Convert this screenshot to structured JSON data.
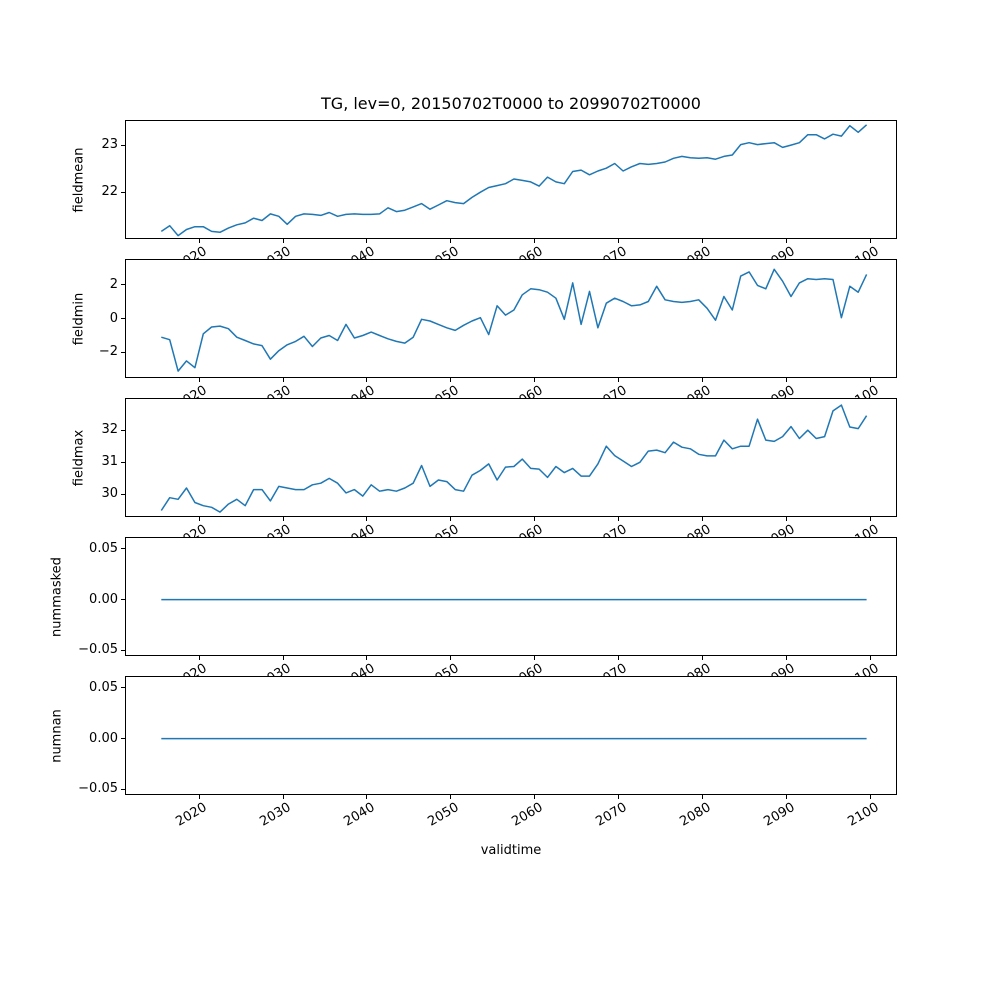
{
  "figure": {
    "title": "TG, lev=0, 20150702T0000 to 20990702T0000",
    "xlabel": "validtime",
    "background": "#ffffff",
    "line_color": "#1f77b4",
    "axis_color": "#000000"
  },
  "chart_data": {
    "type": "line",
    "title": "TG, lev=0, 20150702T0000 to 20990702T0000",
    "xlabel": "validtime",
    "grid": false,
    "legend": false,
    "line_color": "#1f77b4",
    "xlim": [
      2011.3,
      2103.0
    ],
    "x_plot_offset": 0.5,
    "xticks": [
      2020,
      2030,
      2040,
      2050,
      2060,
      2070,
      2080,
      2090,
      2100
    ],
    "xtick_labels": [
      "2020",
      "2030",
      "2040",
      "2050",
      "2060",
      "2070",
      "2080",
      "2090",
      "2100"
    ],
    "xtick_rotation_deg": 30,
    "x": [
      2015,
      2016,
      2017,
      2018,
      2019,
      2020,
      2021,
      2022,
      2023,
      2024,
      2025,
      2026,
      2027,
      2028,
      2029,
      2030,
      2031,
      2032,
      2033,
      2034,
      2035,
      2036,
      2037,
      2038,
      2039,
      2040,
      2041,
      2042,
      2043,
      2044,
      2045,
      2046,
      2047,
      2048,
      2049,
      2050,
      2051,
      2052,
      2053,
      2054,
      2055,
      2056,
      2057,
      2058,
      2059,
      2060,
      2061,
      2062,
      2063,
      2064,
      2065,
      2066,
      2067,
      2068,
      2069,
      2070,
      2071,
      2072,
      2073,
      2074,
      2075,
      2076,
      2077,
      2078,
      2079,
      2080,
      2081,
      2082,
      2083,
      2084,
      2085,
      2086,
      2087,
      2088,
      2089,
      2090,
      2091,
      2092,
      2093,
      2094,
      2095,
      2096,
      2097,
      2098,
      2099
    ],
    "subplots": [
      {
        "ylabel": "fieldmean",
        "ylim": [
          21.03,
          23.51
        ],
        "yticks": [
          {
            "label": "23",
            "value": 23
          },
          {
            "label": "22",
            "value": 22
          }
        ],
        "values": [
          21.17,
          21.29,
          21.08,
          21.21,
          21.27,
          21.27,
          21.17,
          21.15,
          21.24,
          21.31,
          21.35,
          21.45,
          21.4,
          21.54,
          21.49,
          21.32,
          21.49,
          21.54,
          21.53,
          21.51,
          21.57,
          21.49,
          21.53,
          21.54,
          21.53,
          21.53,
          21.54,
          21.67,
          21.59,
          21.62,
          21.69,
          21.76,
          21.64,
          21.73,
          21.82,
          21.78,
          21.76,
          21.89,
          22.0,
          22.1,
          22.14,
          22.18,
          22.28,
          22.25,
          22.22,
          22.13,
          22.32,
          22.22,
          22.18,
          22.44,
          22.47,
          22.37,
          22.45,
          22.51,
          22.61,
          22.45,
          22.54,
          22.61,
          22.59,
          22.61,
          22.64,
          22.72,
          22.76,
          22.73,
          22.72,
          22.73,
          22.7,
          22.76,
          22.79,
          23.01,
          23.05,
          23.01,
          23.03,
          23.05,
          22.95,
          23.0,
          23.05,
          23.22,
          23.22,
          23.13,
          23.23,
          23.19,
          23.41,
          23.27,
          23.43
        ]
      },
      {
        "ylabel": "fieldmin",
        "ylim": [
          -3.45,
          3.45
        ],
        "yticks": [
          {
            "label": "2",
            "value": 2
          },
          {
            "label": "0",
            "value": 0
          },
          {
            "label": "−2",
            "value": -2
          }
        ],
        "values": [
          -1.1,
          -1.25,
          -3.1,
          -2.5,
          -2.9,
          -0.9,
          -0.5,
          -0.45,
          -0.6,
          -1.1,
          -1.3,
          -1.5,
          -1.6,
          -2.4,
          -1.9,
          -1.55,
          -1.35,
          -1.05,
          -1.65,
          -1.15,
          -1.0,
          -1.3,
          -0.35,
          -1.15,
          -1.0,
          -0.8,
          -1.0,
          -1.2,
          -1.35,
          -1.45,
          -1.1,
          -0.05,
          -0.15,
          -0.35,
          -0.55,
          -0.7,
          -0.4,
          -0.15,
          0.05,
          -0.95,
          0.75,
          0.2,
          0.5,
          1.4,
          1.75,
          1.7,
          1.55,
          1.2,
          -0.05,
          2.1,
          -0.35,
          1.6,
          -0.55,
          0.9,
          1.2,
          1.0,
          0.75,
          0.8,
          1.0,
          1.9,
          1.1,
          1.0,
          0.95,
          1.0,
          1.1,
          0.6,
          -0.1,
          1.3,
          0.5,
          2.5,
          2.75,
          1.95,
          1.75,
          2.9,
          2.2,
          1.3,
          2.1,
          2.35,
          2.3,
          2.35,
          2.3,
          0.05,
          1.9,
          1.55,
          2.6
        ]
      },
      {
        "ylabel": "fieldmax",
        "ylim": [
          29.33,
          32.97
        ],
        "yticks": [
          {
            "label": "32",
            "value": 32
          },
          {
            "label": "31",
            "value": 31
          },
          {
            "label": "30",
            "value": 30
          }
        ],
        "values": [
          29.5,
          29.9,
          29.85,
          30.2,
          29.75,
          29.65,
          29.6,
          29.45,
          29.7,
          29.85,
          29.65,
          30.15,
          30.15,
          29.8,
          30.25,
          30.2,
          30.15,
          30.15,
          30.3,
          30.35,
          30.5,
          30.35,
          30.05,
          30.15,
          29.95,
          30.3,
          30.1,
          30.15,
          30.1,
          30.2,
          30.35,
          30.9,
          30.25,
          30.45,
          30.4,
          30.15,
          30.1,
          30.6,
          30.75,
          30.95,
          30.45,
          30.85,
          30.87,
          31.1,
          30.81,
          30.79,
          30.53,
          30.87,
          30.68,
          30.81,
          30.57,
          30.57,
          30.95,
          31.5,
          31.21,
          31.04,
          30.87,
          31.0,
          31.35,
          31.38,
          31.3,
          31.63,
          31.47,
          31.42,
          31.25,
          31.2,
          31.2,
          31.69,
          31.42,
          31.5,
          31.5,
          32.34,
          31.69,
          31.65,
          31.8,
          32.11,
          31.74,
          32.0,
          31.74,
          31.8,
          32.6,
          32.78,
          32.1,
          32.05,
          32.45
        ]
      },
      {
        "ylabel": "nummasked",
        "ylim": [
          -0.0545,
          0.0605
        ],
        "yticks": [
          {
            "label": "0.05",
            "value": 0.05
          },
          {
            "label": "0.00",
            "value": 0
          },
          {
            "label": "−0.05",
            "value": -0.05
          }
        ],
        "values": [
          0,
          0,
          0,
          0,
          0,
          0,
          0,
          0,
          0,
          0,
          0,
          0,
          0,
          0,
          0,
          0,
          0,
          0,
          0,
          0,
          0,
          0,
          0,
          0,
          0,
          0,
          0,
          0,
          0,
          0,
          0,
          0,
          0,
          0,
          0,
          0,
          0,
          0,
          0,
          0,
          0,
          0,
          0,
          0,
          0,
          0,
          0,
          0,
          0,
          0,
          0,
          0,
          0,
          0,
          0,
          0,
          0,
          0,
          0,
          0,
          0,
          0,
          0,
          0,
          0,
          0,
          0,
          0,
          0,
          0,
          0,
          0,
          0,
          0,
          0,
          0,
          0,
          0,
          0,
          0,
          0,
          0,
          0,
          0,
          0
        ]
      },
      {
        "ylabel": "numnan",
        "ylim": [
          -0.0545,
          0.0605
        ],
        "yticks": [
          {
            "label": "0.05",
            "value": 0.05
          },
          {
            "label": "0.00",
            "value": 0
          },
          {
            "label": "−0.05",
            "value": -0.05
          }
        ],
        "values": [
          0,
          0,
          0,
          0,
          0,
          0,
          0,
          0,
          0,
          0,
          0,
          0,
          0,
          0,
          0,
          0,
          0,
          0,
          0,
          0,
          0,
          0,
          0,
          0,
          0,
          0,
          0,
          0,
          0,
          0,
          0,
          0,
          0,
          0,
          0,
          0,
          0,
          0,
          0,
          0,
          0,
          0,
          0,
          0,
          0,
          0,
          0,
          0,
          0,
          0,
          0,
          0,
          0,
          0,
          0,
          0,
          0,
          0,
          0,
          0,
          0,
          0,
          0,
          0,
          0,
          0,
          0,
          0,
          0,
          0,
          0,
          0,
          0,
          0,
          0,
          0,
          0,
          0,
          0,
          0,
          0,
          0,
          0,
          0,
          0
        ]
      }
    ]
  }
}
